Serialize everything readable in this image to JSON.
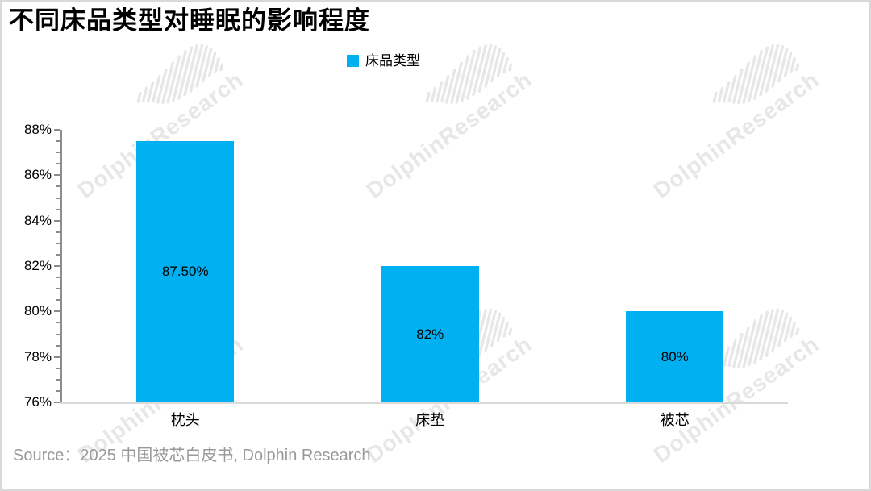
{
  "title": "不同床品类型对睡眠的影响程度",
  "legend": {
    "label": "床品类型",
    "swatch_color": "#00B0F0"
  },
  "source": "Source：2025 中国被芯白皮书, Dolphin Research",
  "watermark": {
    "text": "DolphinResearch"
  },
  "colors": {
    "bar": "#00B0F0",
    "y_axis": "#8c8c8c",
    "x_axis": "#d9d9d9",
    "source_text": "#999999",
    "watermark": "#e7e7e7",
    "label_text": "#000000",
    "frame_border": "#d9d9d9"
  },
  "chart_data": {
    "type": "bar",
    "title": "不同床品类型对睡眠的影响程度",
    "series_name": "床品类型",
    "categories": [
      "枕头",
      "床垫",
      "被芯"
    ],
    "values": [
      87.5,
      82,
      80
    ],
    "value_labels": [
      "87.50%",
      "82%",
      "80%"
    ],
    "xlabel": "",
    "ylabel": "",
    "ylim": [
      76,
      88
    ],
    "ytick_step": 2,
    "ytick_minor_step": 0.5,
    "ytick_labels": [
      "76%",
      "78%",
      "80%",
      "82%",
      "84%",
      "86%",
      "88%"
    ],
    "grid": false,
    "legend_position": "top-center",
    "value_label_position": "inside-center"
  }
}
